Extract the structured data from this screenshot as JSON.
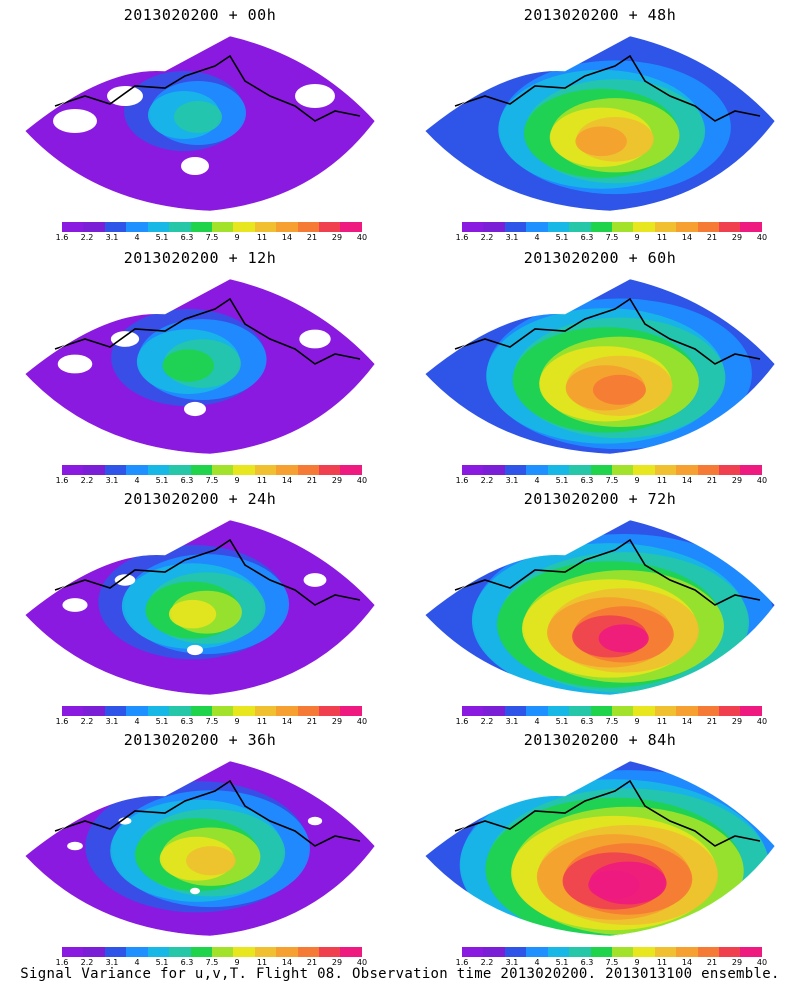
{
  "panels": [
    {
      "title": "2013020200 + 00h",
      "lead_hours": 0
    },
    {
      "title": "2013020200 + 48h",
      "lead_hours": 48
    },
    {
      "title": "2013020200 + 12h",
      "lead_hours": 12
    },
    {
      "title": "2013020200 + 60h",
      "lead_hours": 60
    },
    {
      "title": "2013020200 + 24h",
      "lead_hours": 24
    },
    {
      "title": "2013020200 + 72h",
      "lead_hours": 72
    },
    {
      "title": "2013020200 + 36h",
      "lead_hours": 36
    },
    {
      "title": "2013020200 + 84h",
      "lead_hours": 84
    }
  ],
  "colorbar": {
    "labels": [
      "1.6",
      "2.2",
      "3.1",
      "4",
      "5.1",
      "6.3",
      "7.5",
      "9",
      "11",
      "14",
      "21",
      "29",
      "40"
    ],
    "colors": [
      "#8b1ae0",
      "#7a1fd6",
      "#2f54e8",
      "#1e90ff",
      "#17b8e6",
      "#25c7a8",
      "#1fd34a",
      "#a3e22a",
      "#e8e61e",
      "#f0c030",
      "#f5a030",
      "#f57a35",
      "#f04050",
      "#ee1a80"
    ]
  },
  "caption": "Signal Variance for u,v,T. Flight 08. Observation time 2013020200. 2013013100 ensemble."
}
